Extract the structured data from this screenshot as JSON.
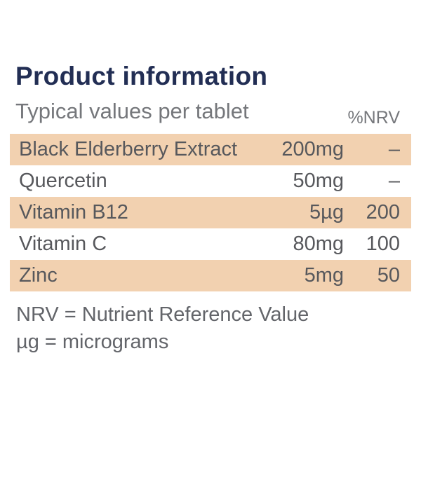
{
  "header": {
    "title": "Product information",
    "subtitle": "Typical values per tablet",
    "nrv_column_label": "%NRV"
  },
  "table": {
    "rows": [
      {
        "name": "Black Elderberry Extract",
        "amount": "200mg",
        "nrv": "–"
      },
      {
        "name": "Quercetin",
        "amount": "50mg",
        "nrv": "–"
      },
      {
        "name": "Vitamin B12",
        "amount": "5µg",
        "nrv": "200"
      },
      {
        "name": "Vitamin C",
        "amount": "80mg",
        "nrv": "100"
      },
      {
        "name": "Zinc",
        "amount": "5mg",
        "nrv": "50"
      }
    ]
  },
  "footnotes": {
    "nrv_definition": "NRV = Nutrient Reference Value",
    "microgram_definition": "µg = micrograms"
  },
  "colors": {
    "title_navy": "#222e54",
    "body_gray": "#57585c",
    "row_highlight_peach": "#f2d1b0",
    "background": "#ffffff"
  }
}
